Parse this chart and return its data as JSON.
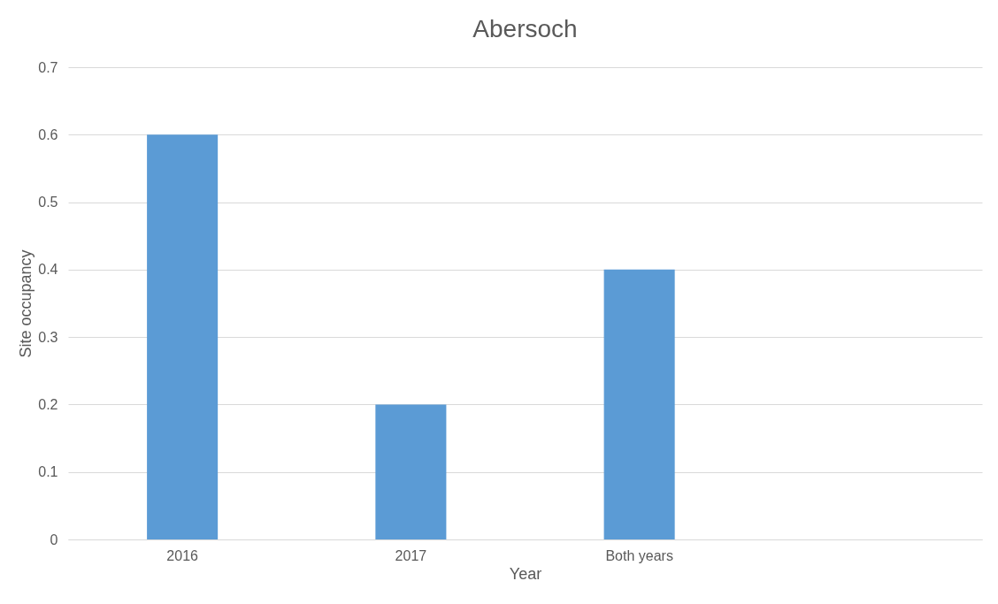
{
  "chart_data": {
    "type": "bar",
    "title": "Abersoch",
    "xlabel": "Year",
    "ylabel": "Site occupancy",
    "categories": [
      "2016",
      "2017",
      "Both years",
      null
    ],
    "values": [
      0.6,
      0.2,
      0.4,
      null
    ],
    "color": "#5b9bd5",
    "ylim": [
      0,
      0.7
    ],
    "yticks": [
      0,
      0.1,
      0.2,
      0.3,
      0.4,
      0.5,
      0.6,
      0.7
    ],
    "grid": "y"
  }
}
